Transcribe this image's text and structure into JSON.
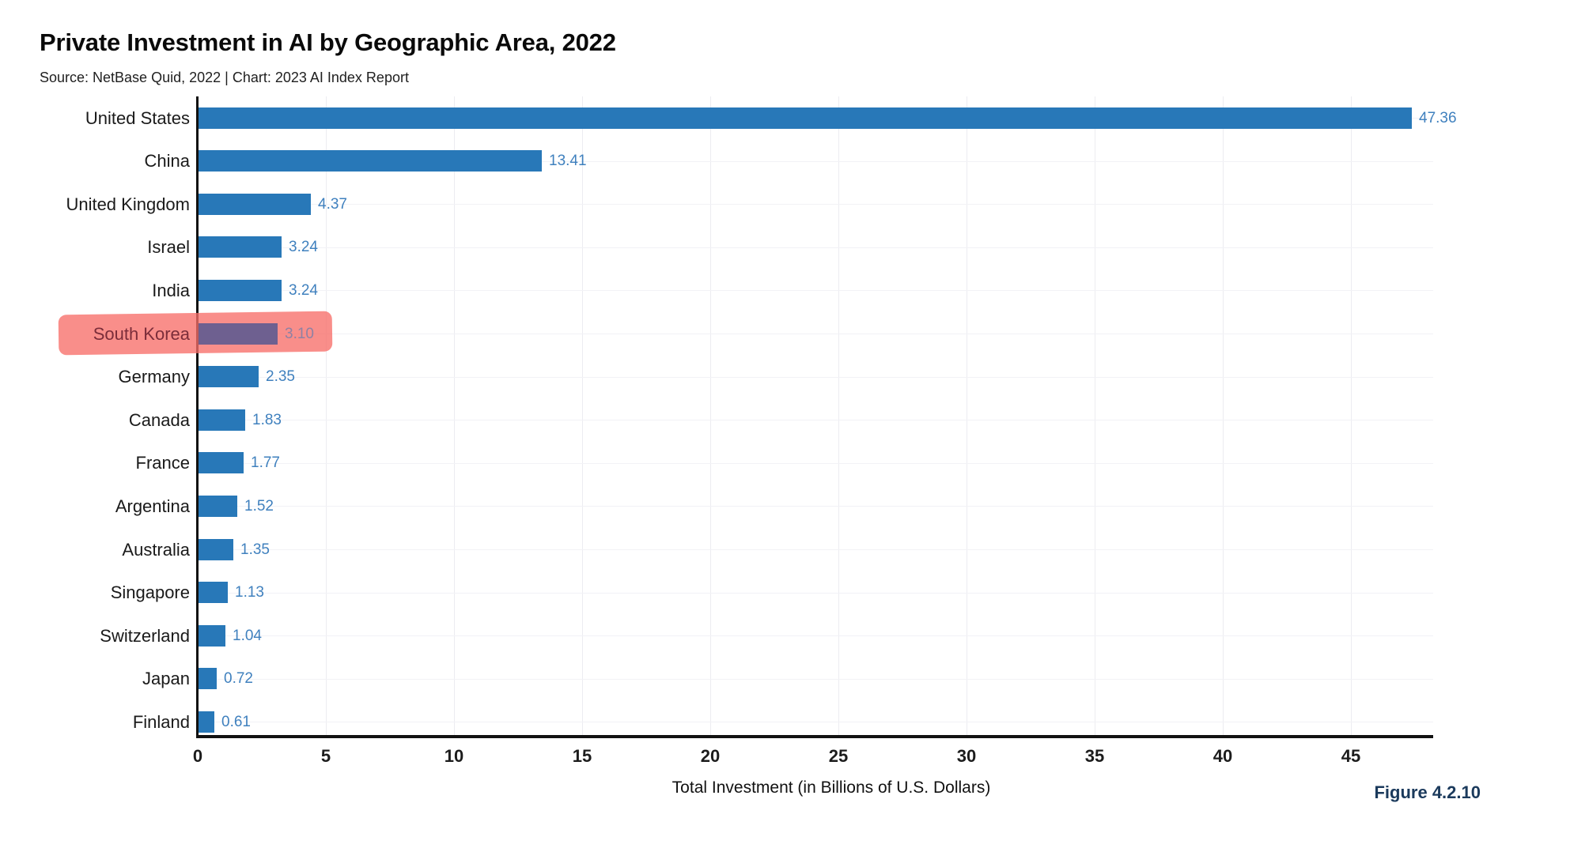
{
  "title": "Private Investment in AI by Geographic Area, 2022",
  "subtitle": "Source: NetBase Quid, 2022 | Chart: 2023 AI Index Report",
  "figure_label": "Figure 4.2.10",
  "chart_data": {
    "type": "bar",
    "orientation": "horizontal",
    "title": "Private Investment in AI by Geographic Area, 2022",
    "categories": [
      "United States",
      "China",
      "United Kingdom",
      "Israel",
      "India",
      "South Korea",
      "Germany",
      "Canada",
      "France",
      "Argentina",
      "Australia",
      "Singapore",
      "Switzerland",
      "Japan",
      "Finland"
    ],
    "values": [
      47.36,
      13.41,
      4.37,
      3.24,
      3.24,
      3.1,
      2.35,
      1.83,
      1.77,
      1.52,
      1.35,
      1.13,
      1.04,
      0.72,
      0.61
    ],
    "value_labels": [
      "47.36",
      "13.41",
      "4.37",
      "3.24",
      "3.24",
      "3.10",
      "2.35",
      "1.83",
      "1.77",
      "1.52",
      "1.35",
      "1.13",
      "1.04",
      "0.72",
      "0.61"
    ],
    "xlabel": "Total Investment (in Billions of U.S. Dollars)",
    "xticks": [
      0,
      5,
      10,
      15,
      20,
      25,
      30,
      35,
      40,
      45
    ],
    "xlim": [
      0,
      48.2
    ],
    "grid": true,
    "legend": "none",
    "highlighted_category": "South Korea",
    "annotation": "pink highlighter stroke over the South Korea row"
  },
  "colors": {
    "bar": "#2878b8",
    "value_label": "#3f80be",
    "category_label": "#1a1a1a",
    "axis": "#111111",
    "gridline": "#ececf1",
    "highlight_stroke": "rgba(247,110,105,0.78)",
    "highlighted_bar": "#6e6090",
    "highlighted_category_label": "#7b2d3a",
    "highlighted_value_label": "#8f81a4",
    "figure_label": "#1b3a5c"
  }
}
